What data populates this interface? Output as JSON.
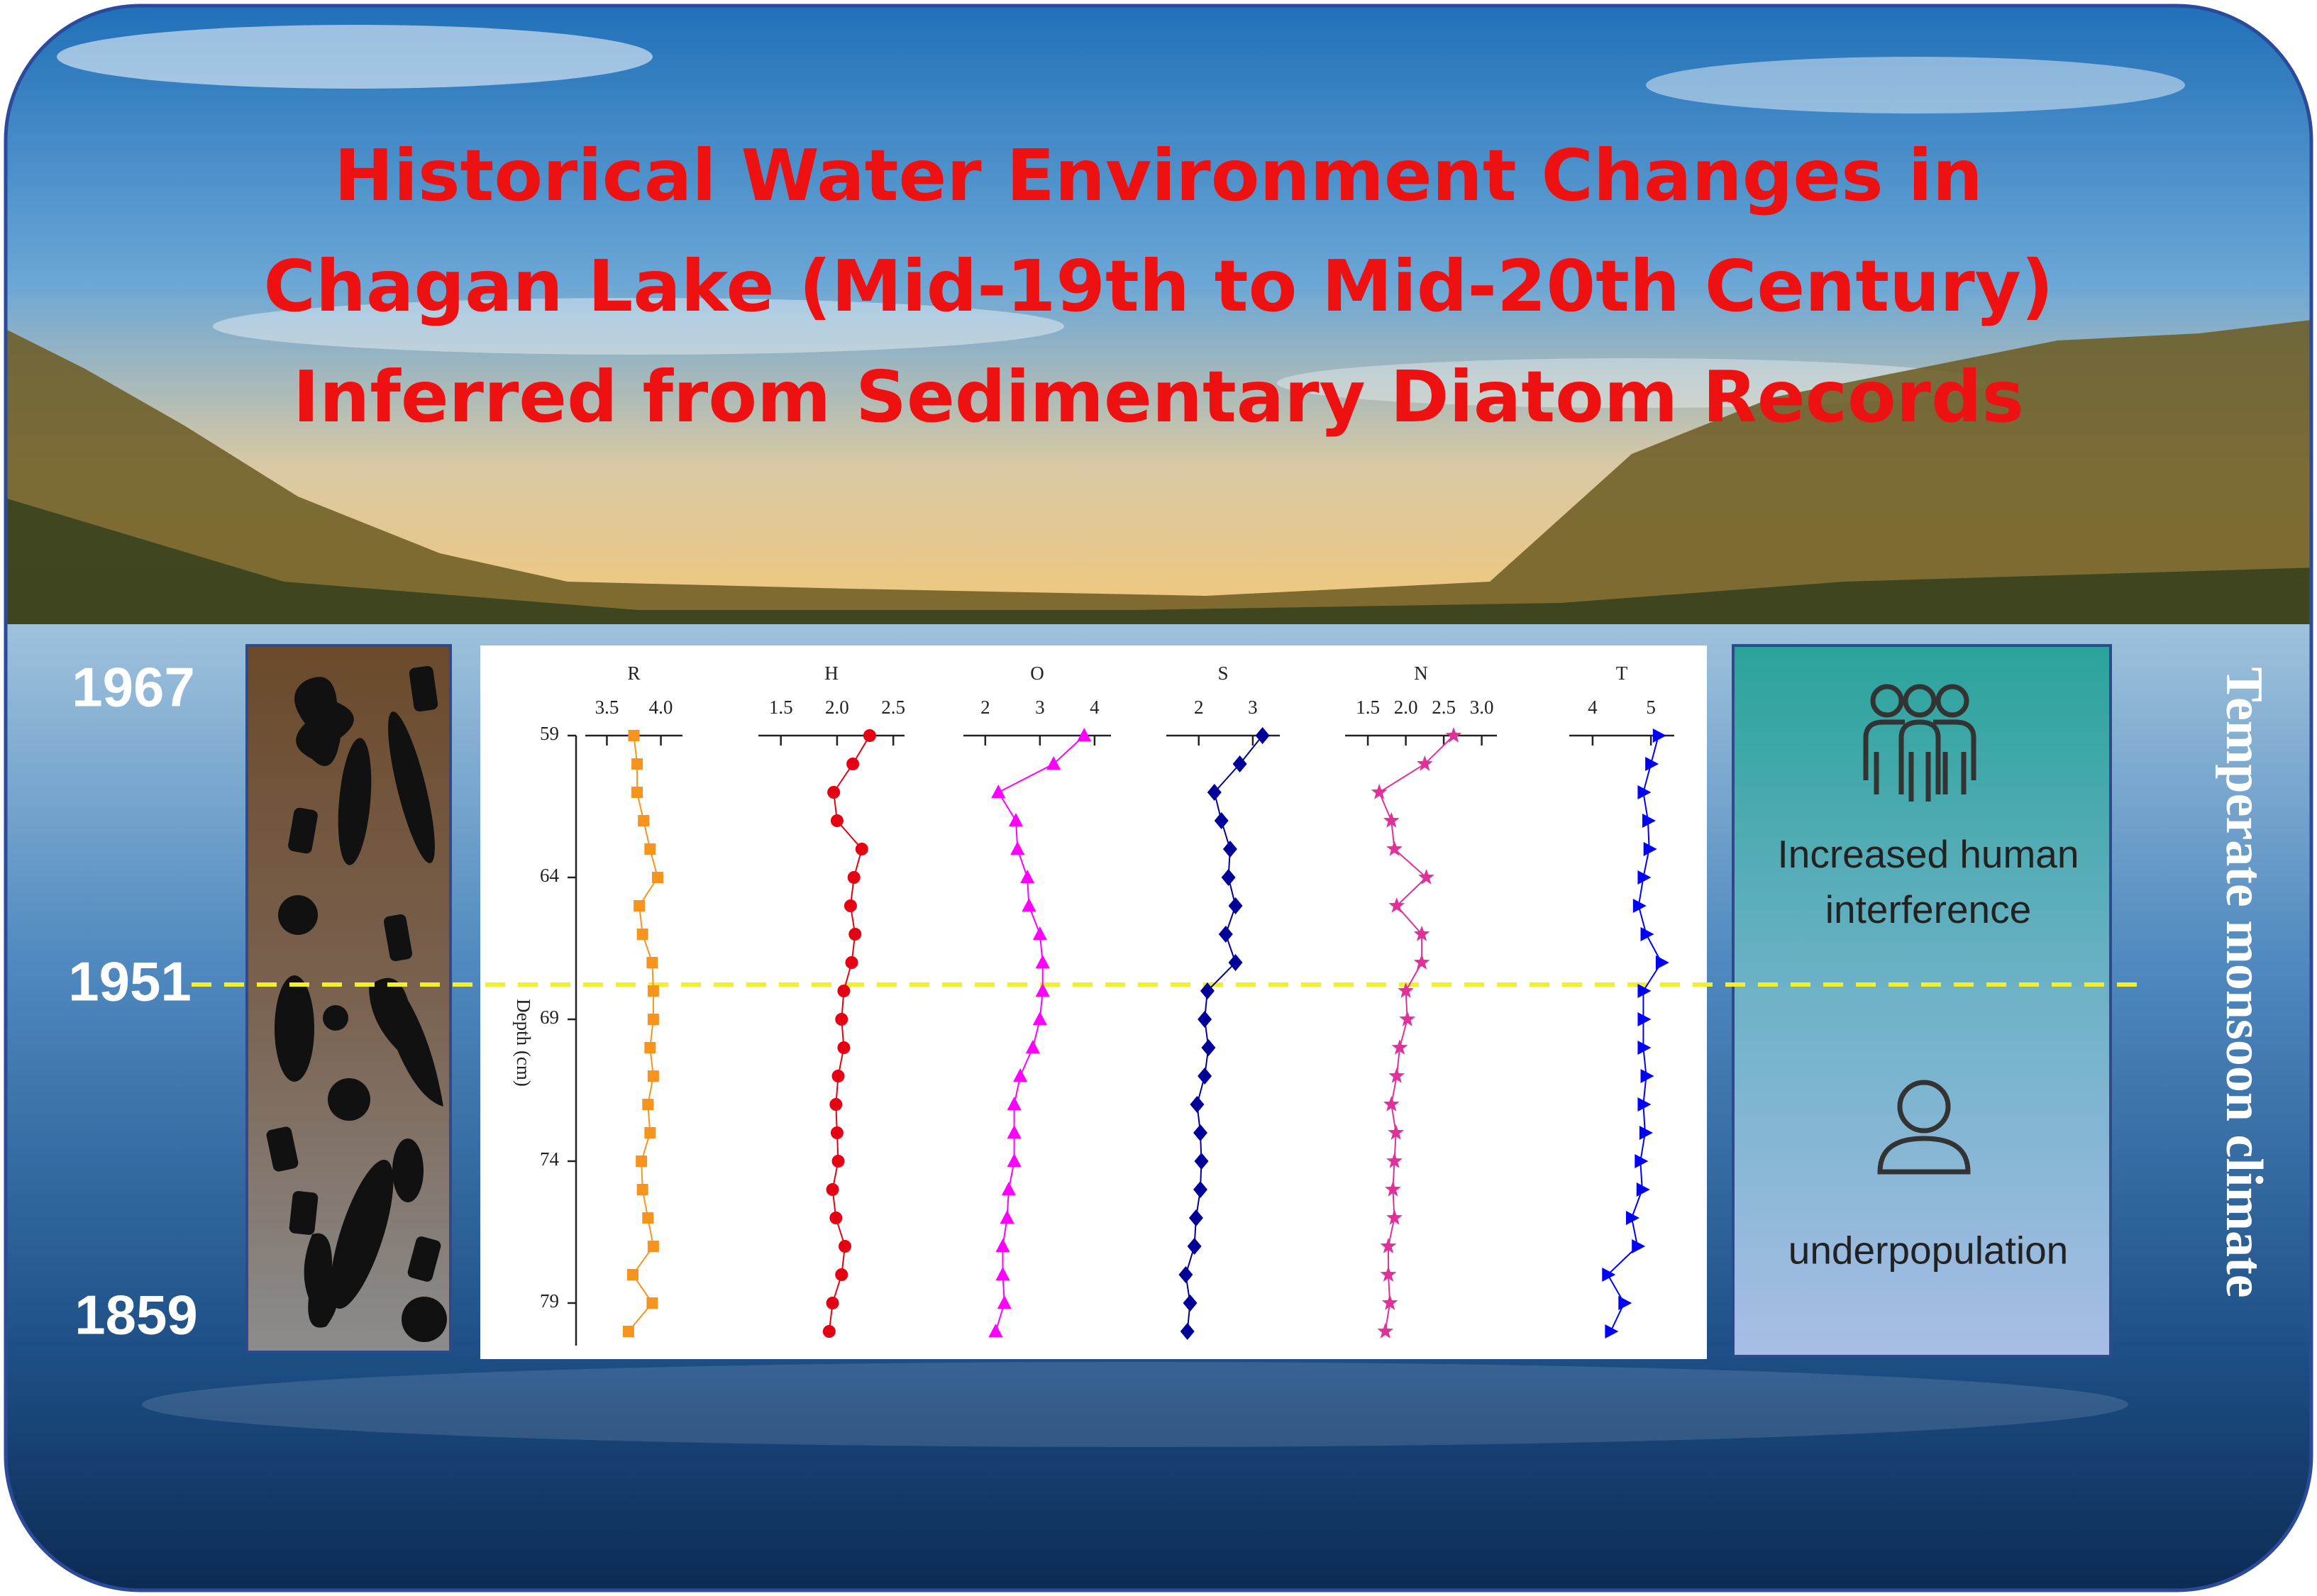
{
  "title": "Historical Water Environment Changes in Chagan Lake (Mid-19th to Mid-20th Century) Inferred from Sedimentary Diatom Records",
  "years": [
    "1967",
    "1951",
    "1859"
  ],
  "side_label": "Temperate monsoon climate",
  "right_panel": {
    "top": "Increased human interference",
    "bottom": "underpopulation"
  },
  "chart_data": {
    "type": "line",
    "y_label": "Depth (cm)",
    "invert_y": true,
    "y": [
      59,
      60,
      61,
      62,
      63,
      64,
      65,
      66,
      67,
      68,
      69,
      70,
      71,
      72,
      73,
      74,
      75,
      76,
      77,
      78,
      79,
      80
    ],
    "ylim": [
      59,
      80.5
    ],
    "yticks": [
      59,
      64,
      69,
      74,
      79
    ],
    "series": [
      {
        "name": "R",
        "color": "#f7941d",
        "marker": "square",
        "xlim": [
          3.3,
          4.2
        ],
        "xticks": [
          3.5,
          {
            "value": 4,
            "label": "4.0"
          }
        ],
        "values": [
          3.75,
          3.78,
          3.78,
          3.84,
          3.9,
          3.97,
          3.8,
          3.83,
          3.92,
          3.93,
          3.93,
          3.9,
          3.93,
          3.88,
          3.9,
          3.82,
          3.83,
          3.88,
          3.93,
          3.74,
          3.92,
          3.7
        ]
      },
      {
        "name": "H",
        "color": "#e60012",
        "marker": "circle",
        "xlim": [
          1.3,
          2.6
        ],
        "xticks": [
          1.5,
          {
            "value": 2,
            "label": "2.0"
          },
          2.5
        ],
        "values": [
          2.29,
          2.14,
          1.97,
          2.0,
          2.22,
          2.15,
          2.12,
          2.16,
          2.13,
          2.06,
          2.04,
          2.06,
          2.01,
          1.99,
          2.0,
          2.01,
          1.96,
          1.99,
          2.07,
          2.04,
          1.96,
          1.93
        ]
      },
      {
        "name": "O",
        "color": "#ff00ff",
        "marker": "triangle",
        "xlim": [
          1.6,
          4.3
        ],
        "xticks": [
          2,
          3,
          4
        ],
        "values": [
          3.81,
          3.25,
          2.24,
          2.56,
          2.59,
          2.77,
          2.8,
          3.0,
          3.05,
          3.05,
          3.0,
          2.87,
          2.64,
          2.53,
          2.53,
          2.53,
          2.43,
          2.4,
          2.32,
          2.32,
          2.35,
          2.19
        ]
      },
      {
        "name": "S",
        "color": "#000099",
        "marker": "diamond",
        "xlim": [
          1.4,
          3.5
        ],
        "xticks": [
          2,
          3
        ],
        "values": [
          3.18,
          2.76,
          2.29,
          2.42,
          2.58,
          2.55,
          2.68,
          2.5,
          2.68,
          2.16,
          2.11,
          2.18,
          2.11,
          1.97,
          2.03,
          2.05,
          2.03,
          1.95,
          1.92,
          1.76,
          1.84,
          1.79
        ]
      },
      {
        "name": "N",
        "color": "#e0309a",
        "marker": "star",
        "xlim": [
          1.2,
          3.2
        ],
        "xticks": [
          1.5,
          {
            "value": 2,
            "label": "2.0"
          },
          2.5,
          {
            "value": 3,
            "label": "3.0"
          }
        ],
        "values": [
          2.63,
          2.25,
          1.65,
          1.81,
          1.85,
          2.27,
          1.88,
          2.21,
          2.21,
          2.0,
          2.02,
          1.92,
          1.88,
          1.81,
          1.87,
          1.85,
          1.83,
          1.85,
          1.77,
          1.77,
          1.79,
          1.73
        ]
      },
      {
        "name": "T",
        "color": "#0000ff",
        "marker": "triangle-right",
        "xlim": [
          3.6,
          5.4
        ],
        "xticks": [
          4,
          5
        ],
        "values": [
          5.13,
          5.0,
          4.87,
          4.95,
          4.97,
          4.87,
          4.79,
          4.92,
          5.18,
          4.87,
          4.87,
          4.87,
          4.92,
          4.87,
          4.9,
          4.82,
          4.85,
          4.67,
          4.77,
          4.26,
          4.54,
          4.31
        ]
      }
    ]
  }
}
